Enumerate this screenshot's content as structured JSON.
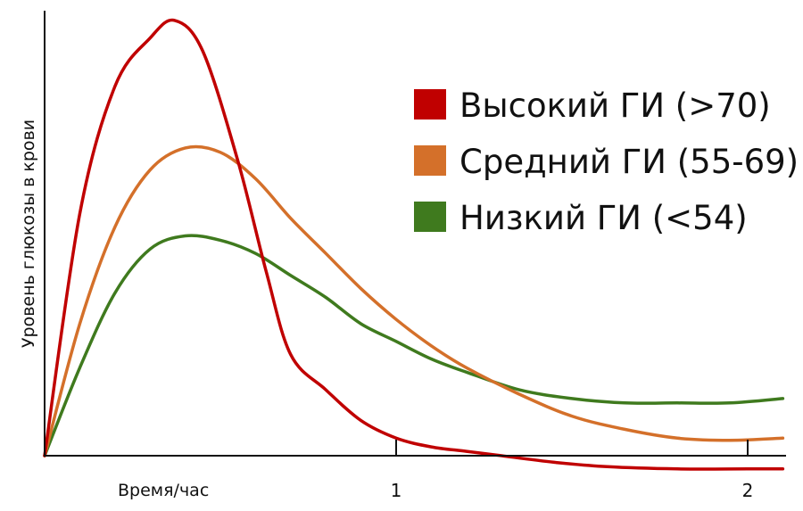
{
  "chart_data": {
    "type": "line",
    "title": "",
    "xlabel": "Время/час",
    "ylabel": "Уровень глюкозы в крови",
    "xlim": [
      0,
      2.1
    ],
    "ylim": [
      -0.03,
      1.0
    ],
    "xticks": [
      {
        "value": 1,
        "label": "1"
      },
      {
        "value": 2,
        "label": "2"
      }
    ],
    "legend_position": "top-right",
    "grid": false,
    "series": [
      {
        "name": "Высокий ГИ (>70)",
        "color": "#c00000",
        "points": [
          [
            0,
            0
          ],
          [
            0.1,
            0.55
          ],
          [
            0.2,
            0.84
          ],
          [
            0.3,
            0.95
          ],
          [
            0.37,
            0.99
          ],
          [
            0.45,
            0.92
          ],
          [
            0.55,
            0.67
          ],
          [
            0.63,
            0.42
          ],
          [
            0.7,
            0.23
          ],
          [
            0.8,
            0.15
          ],
          [
            0.9,
            0.08
          ],
          [
            1.0,
            0.04
          ],
          [
            1.1,
            0.02
          ],
          [
            1.2,
            0.01
          ],
          [
            1.3,
            0.0
          ],
          [
            1.45,
            -0.015
          ],
          [
            1.6,
            -0.025
          ],
          [
            1.8,
            -0.03
          ],
          [
            2.0,
            -0.03
          ],
          [
            2.1,
            -0.03
          ]
        ]
      },
      {
        "name": "Средний ГИ (55-69)",
        "color": "#d4702a",
        "points": [
          [
            0,
            0
          ],
          [
            0.1,
            0.3
          ],
          [
            0.2,
            0.52
          ],
          [
            0.3,
            0.65
          ],
          [
            0.4,
            0.7
          ],
          [
            0.5,
            0.69
          ],
          [
            0.6,
            0.63
          ],
          [
            0.7,
            0.54
          ],
          [
            0.8,
            0.46
          ],
          [
            0.9,
            0.38
          ],
          [
            1.0,
            0.31
          ],
          [
            1.1,
            0.25
          ],
          [
            1.2,
            0.2
          ],
          [
            1.35,
            0.14
          ],
          [
            1.5,
            0.09
          ],
          [
            1.65,
            0.06
          ],
          [
            1.8,
            0.04
          ],
          [
            1.95,
            0.035
          ],
          [
            2.1,
            0.04
          ]
        ]
      },
      {
        "name": "Низкий ГИ (<54)",
        "color": "#3f7a1e",
        "points": [
          [
            0,
            0
          ],
          [
            0.1,
            0.2
          ],
          [
            0.2,
            0.37
          ],
          [
            0.3,
            0.47
          ],
          [
            0.4,
            0.5
          ],
          [
            0.5,
            0.49
          ],
          [
            0.6,
            0.46
          ],
          [
            0.7,
            0.41
          ],
          [
            0.8,
            0.36
          ],
          [
            0.9,
            0.3
          ],
          [
            1.0,
            0.26
          ],
          [
            1.1,
            0.22
          ],
          [
            1.2,
            0.19
          ],
          [
            1.35,
            0.15
          ],
          [
            1.5,
            0.13
          ],
          [
            1.65,
            0.12
          ],
          [
            1.8,
            0.12
          ],
          [
            1.95,
            0.12
          ],
          [
            2.1,
            0.13
          ]
        ]
      }
    ]
  }
}
